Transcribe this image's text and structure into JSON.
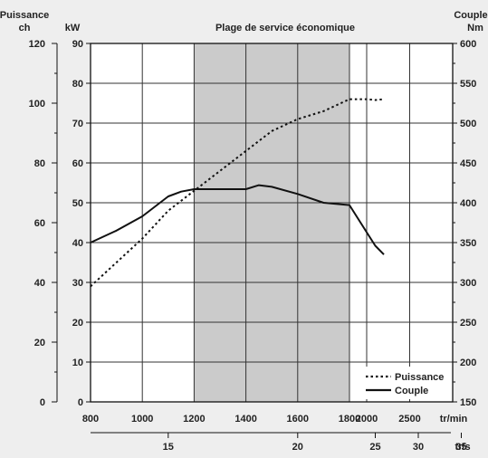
{
  "chart_data": {
    "type": "line",
    "title": "Plage de service économique",
    "xlabel": "tr/min",
    "x2label": "tr/s",
    "xlim": [
      800,
      3000
    ],
    "x_ticks": [
      "800",
      "1000",
      "1200",
      "1400",
      "1600",
      "1800",
      "2000",
      "2500"
    ],
    "x_tick_values": [
      800,
      1000,
      1200,
      1400,
      1600,
      1800,
      2000,
      2500
    ],
    "x2_ticks": [
      "15",
      "20",
      "25",
      "30",
      "35"
    ],
    "x2_tick_values": [
      15,
      20,
      25,
      30,
      35
    ],
    "x2_map": {
      "tr_s": [
        12,
        34
      ],
      "tr_min": [
        800,
        3000
      ]
    },
    "y_left_outer": {
      "title": "Puissance",
      "unit": "ch",
      "ticks": [
        "0",
        "20",
        "40",
        "60",
        "80",
        "100",
        "120"
      ],
      "ylim": [
        0,
        122
      ]
    },
    "y_left_inner": {
      "unit": "kW",
      "ticks": [
        "0",
        "10",
        "20",
        "30",
        "40",
        "50",
        "60",
        "70",
        "80",
        "90"
      ],
      "ylim": [
        0,
        90
      ]
    },
    "y_right": {
      "title": "Couple",
      "unit": "Nm",
      "ticks": [
        "150",
        "200",
        "250",
        "300",
        "350",
        "400",
        "450",
        "500",
        "550",
        "600"
      ],
      "ylim": [
        150,
        600
      ]
    },
    "shaded_band": {
      "from": 1200,
      "to": 1800
    },
    "grid": {
      "vertical": true,
      "horizontal": true
    },
    "legend_position": "bottom-right",
    "series": [
      {
        "name": "Puissance",
        "style": "dotted",
        "axis": "kW",
        "x": [
          800,
          900,
          1000,
          1100,
          1200,
          1300,
          1400,
          1500,
          1600,
          1700,
          1800,
          1900,
          2000,
          2100,
          2200
        ],
        "y": [
          29,
          35,
          41,
          48,
          53,
          58,
          63,
          68,
          71,
          73,
          76,
          76,
          76,
          75.8,
          76
        ]
      },
      {
        "name": "Couple",
        "style": "solid",
        "axis": "Nm",
        "x": [
          800,
          900,
          1000,
          1100,
          1150,
          1200,
          1300,
          1400,
          1450,
          1500,
          1600,
          1700,
          1800,
          1900,
          2000,
          2100,
          2200
        ],
        "y": [
          350,
          365,
          383,
          408,
          414,
          417,
          417,
          417,
          422,
          420,
          411,
          400,
          397,
          380,
          363,
          346,
          335
        ]
      }
    ]
  }
}
